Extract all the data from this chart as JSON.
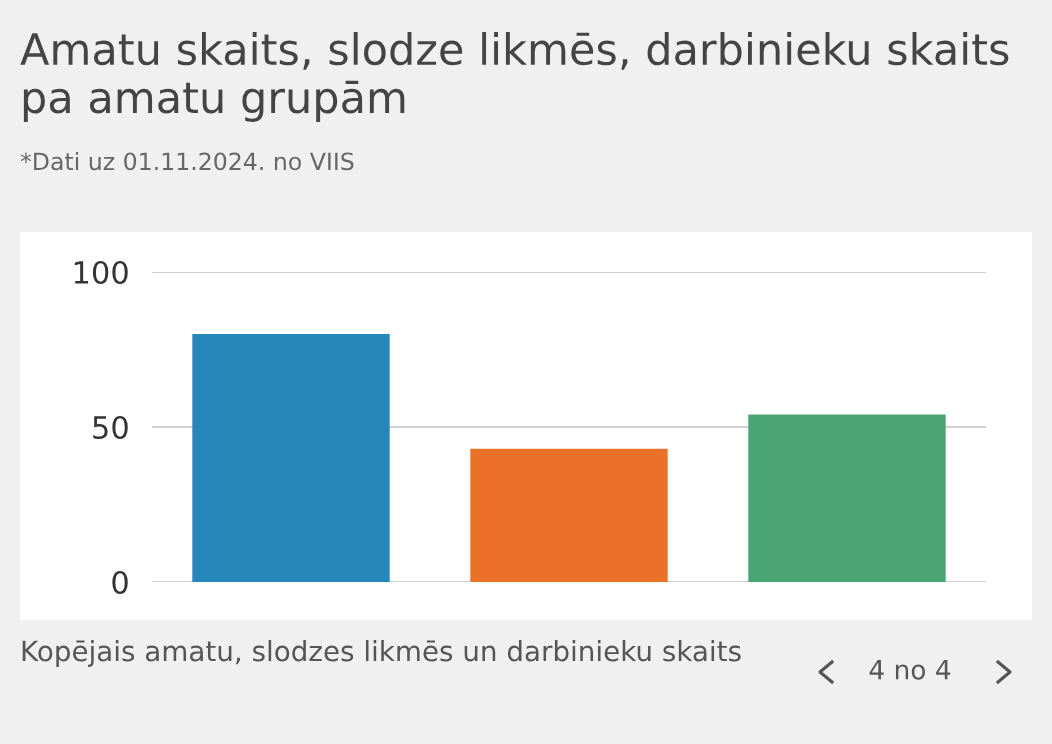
{
  "chart_data": {
    "type": "bar",
    "title": "Amatu skaits, slodze likmēs, darbinieku skaits pa amatu grupām",
    "subtitle": "*Dati uz 01.11.2024. no VIIS",
    "categories": [
      null,
      null,
      null
    ],
    "values": [
      80,
      43,
      54
    ],
    "colors": [
      "#2787ba",
      "#eb7128",
      "#4aa573"
    ],
    "ylim": [
      0,
      100
    ],
    "yticks": [
      0,
      50,
      100
    ],
    "grid": "y",
    "tick_labels": "y",
    "annotations": [
      "Kopējais amatu, slodzes likmēs un darbinieku skaits",
      "4 no 4"
    ]
  }
}
